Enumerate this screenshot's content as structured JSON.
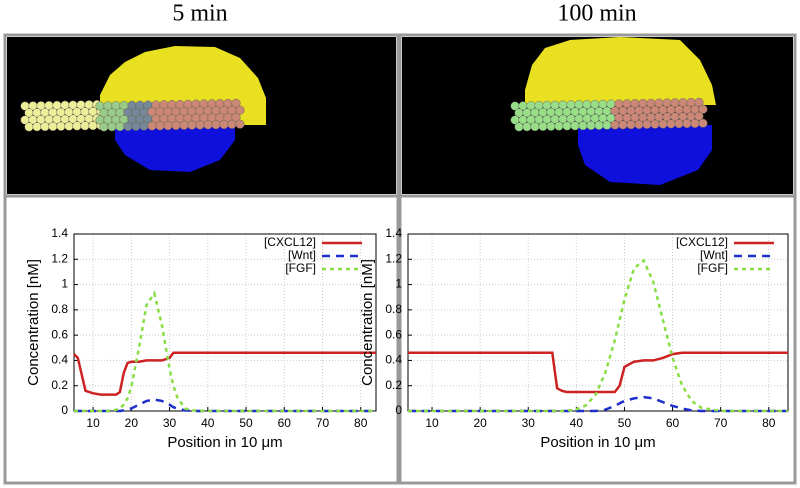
{
  "chart_data": [
    {
      "type": "line",
      "title": "5 min",
      "xlabel": "Position in 10 μm",
      "ylabel": "Concentration [nM]",
      "xlim": [
        5,
        84
      ],
      "ylim": [
        0,
        1.4
      ],
      "xticks": [
        10,
        20,
        30,
        40,
        50,
        60,
        70,
        80
      ],
      "yticks": [
        0,
        0.2,
        0.4,
        0.6,
        0.8,
        1,
        1.2,
        1.4
      ],
      "grid": true,
      "legend": "upper right",
      "x": [
        5,
        6,
        8,
        10,
        12,
        14,
        16,
        17,
        18,
        19,
        20,
        22,
        24,
        26,
        28,
        30,
        31,
        32,
        34,
        36,
        40,
        50,
        60,
        70,
        80,
        84
      ],
      "series": [
        {
          "name": "[CXCL12]",
          "color": "#cc2222",
          "dash": "solid",
          "values": [
            0.45,
            0.42,
            0.16,
            0.14,
            0.13,
            0.13,
            0.13,
            0.15,
            0.3,
            0.38,
            0.39,
            0.39,
            0.4,
            0.4,
            0.4,
            0.42,
            0.46,
            0.46,
            0.46,
            0.46,
            0.46,
            0.46,
            0.46,
            0.46,
            0.46,
            0.46
          ]
        },
        {
          "name": "[Wnt]",
          "color": "#1f2fcc",
          "dash": "dashed",
          "values": [
            0,
            0,
            0,
            0,
            0,
            0,
            0,
            0,
            0.005,
            0.01,
            0.02,
            0.05,
            0.08,
            0.09,
            0.08,
            0.05,
            0.03,
            0.02,
            0.005,
            0,
            0,
            0,
            0,
            0,
            0,
            0
          ]
        },
        {
          "name": "[FGF]",
          "color": "#88dd44",
          "dash": "dotted",
          "values": [
            0,
            0,
            0,
            0,
            0,
            0,
            0.01,
            0.02,
            0.05,
            0.1,
            0.19,
            0.5,
            0.84,
            0.93,
            0.68,
            0.33,
            0.2,
            0.11,
            0.02,
            0.005,
            0,
            0,
            0,
            0,
            0,
            0
          ]
        }
      ]
    },
    {
      "type": "line",
      "title": "100 min",
      "xlabel": "Position in 10 μm",
      "ylabel": "Concentration [nM]",
      "xlim": [
        5,
        84
      ],
      "ylim": [
        0,
        1.4
      ],
      "xticks": [
        10,
        20,
        30,
        40,
        50,
        60,
        70,
        80
      ],
      "yticks": [
        0,
        0.2,
        0.4,
        0.6,
        0.8,
        1,
        1.2,
        1.4
      ],
      "grid": true,
      "legend": "upper right",
      "x": [
        5,
        10,
        20,
        30,
        34,
        35,
        36,
        37,
        38,
        40,
        42,
        44,
        46,
        48,
        49,
        50,
        52,
        54,
        56,
        58,
        60,
        62,
        64,
        66,
        70,
        75,
        80,
        84
      ],
      "series": [
        {
          "name": "[CXCL12]",
          "color": "#cc2222",
          "dash": "solid",
          "values": [
            0.46,
            0.46,
            0.46,
            0.46,
            0.46,
            0.46,
            0.18,
            0.16,
            0.15,
            0.15,
            0.15,
            0.15,
            0.15,
            0.15,
            0.2,
            0.35,
            0.39,
            0.4,
            0.4,
            0.42,
            0.45,
            0.46,
            0.46,
            0.46,
            0.46,
            0.46,
            0.46,
            0.46
          ]
        },
        {
          "name": "[Wnt]",
          "color": "#1f2fcc",
          "dash": "dashed",
          "values": [
            0,
            0,
            0,
            0,
            0,
            0,
            0,
            0,
            0,
            0,
            0,
            0,
            0.01,
            0.04,
            0.06,
            0.08,
            0.1,
            0.11,
            0.1,
            0.07,
            0.04,
            0.02,
            0.005,
            0,
            0,
            0,
            0,
            0
          ]
        },
        {
          "name": "[FGF]",
          "color": "#88dd44",
          "dash": "dotted",
          "values": [
            0,
            0,
            0,
            0,
            0,
            0,
            0,
            0,
            0.003,
            0.013,
            0.045,
            0.128,
            0.3,
            0.56,
            0.72,
            0.88,
            1.13,
            1.19,
            1.02,
            0.72,
            0.42,
            0.2,
            0.078,
            0.025,
            0,
            0,
            0,
            0
          ]
        }
      ]
    }
  ]
}
